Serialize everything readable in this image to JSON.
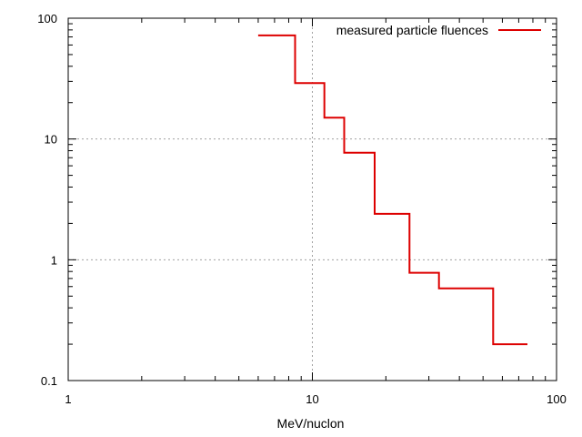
{
  "chart_data": {
    "type": "line",
    "step": true,
    "xlabel": "MeV/nuclon",
    "ylabel": "",
    "title": "",
    "xscale": "log",
    "yscale": "log",
    "xlim": [
      1,
      100
    ],
    "ylim": [
      0.1,
      100
    ],
    "x_ticks": [
      "1",
      "10",
      "100"
    ],
    "y_ticks": [
      "0.1",
      "1",
      "10",
      "100"
    ],
    "grid": true,
    "legend_position": "top-right",
    "series": [
      {
        "name": "measured particle fluences",
        "color": "#dd0000",
        "bins": [
          {
            "x_start": 6.0,
            "x_end": 8.5,
            "y": 72
          },
          {
            "x_start": 8.5,
            "x_end": 11.2,
            "y": 29
          },
          {
            "x_start": 11.2,
            "x_end": 13.5,
            "y": 15
          },
          {
            "x_start": 13.5,
            "x_end": 18.0,
            "y": 7.7
          },
          {
            "x_start": 18.0,
            "x_end": 25.0,
            "y": 2.4
          },
          {
            "x_start": 25.0,
            "x_end": 33.0,
            "y": 0.78
          },
          {
            "x_start": 33.0,
            "x_end": 55.0,
            "y": 0.58
          },
          {
            "x_start": 55.0,
            "x_end": 76.0,
            "y": 0.2
          }
        ]
      }
    ]
  }
}
